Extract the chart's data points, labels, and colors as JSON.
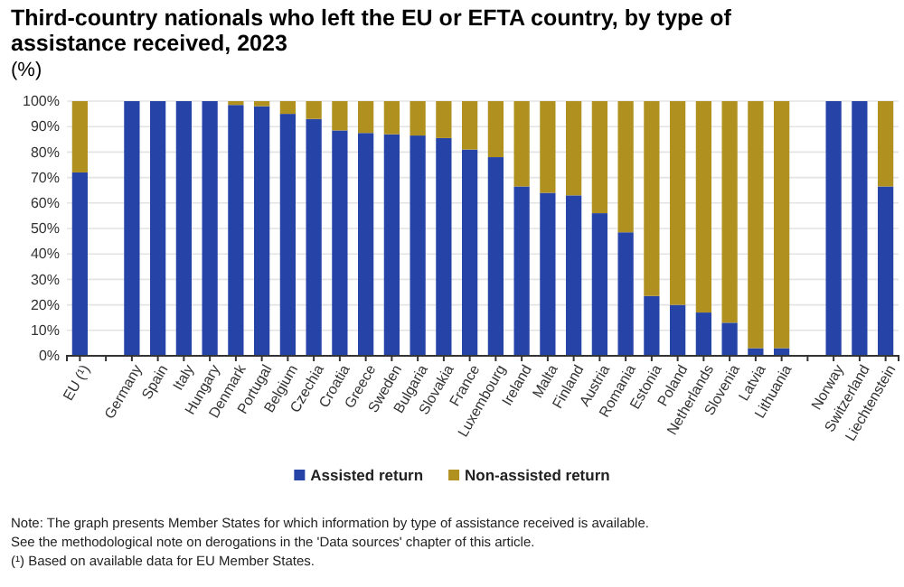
{
  "chart_data": {
    "type": "bar",
    "stacked": true,
    "title": "Third-country nationals who left the EU or EFTA country, by type of assistance received, 2023",
    "subtitle": "(%)",
    "categories": [
      "EU (¹)",
      null,
      "Germany",
      "Spain",
      "Italy",
      "Hungary",
      "Denmark",
      "Portugal",
      "Belgium",
      "Czechia",
      "Croatia",
      "Greece",
      "Sweden",
      "Bulgaria",
      "Slovakia",
      "France",
      "Luxembourg",
      "Ireland",
      "Malta",
      "Finland",
      "Austria",
      "Romania",
      "Estonia",
      "Poland",
      "Netherlands",
      "Slovenia",
      "Latvia",
      "Lithuania",
      null,
      "Norway",
      "Switzerland",
      "Liechtenstein"
    ],
    "series": [
      {
        "name": "Assisted return",
        "color": "#2644a7",
        "values": [
          72,
          null,
          100,
          100,
          100,
          100,
          98.5,
          98,
          95,
          93,
          88.5,
          87.5,
          87,
          86.5,
          85.5,
          81,
          78,
          66.5,
          64,
          63,
          56,
          48.5,
          23.5,
          20,
          17,
          13,
          3,
          3,
          null,
          100,
          100,
          66.5
        ]
      },
      {
        "name": "Non-assisted return",
        "color": "#b09120",
        "values": [
          28,
          null,
          0,
          0,
          0,
          0,
          1.5,
          2,
          5,
          7,
          11.5,
          12.5,
          13,
          13.5,
          14.5,
          19,
          22,
          33.5,
          36,
          37,
          44,
          51.5,
          76.5,
          80,
          83,
          87,
          97,
          97,
          null,
          0,
          0,
          33.5
        ]
      }
    ],
    "ylim": [
      0,
      100
    ],
    "yticks": [
      {
        "value": 0,
        "label": "0%"
      },
      {
        "value": 10,
        "label": "10%"
      },
      {
        "value": 20,
        "label": "20%"
      },
      {
        "value": 30,
        "label": "30%"
      },
      {
        "value": 40,
        "label": "40%"
      },
      {
        "value": 50,
        "label": "50%"
      },
      {
        "value": 60,
        "label": "60%"
      },
      {
        "value": 70,
        "label": "70%"
      },
      {
        "value": 80,
        "label": "80%"
      },
      {
        "value": 90,
        "label": "90%"
      },
      {
        "value": 100,
        "label": "100%"
      }
    ],
    "grid": "y",
    "legend": "bottom",
    "annotations": [
      "Note: The graph presents Member States for which information by type of assistance received is available.",
      "See the methodological note on derogations in the 'Data sources' chapter of this article.",
      "(¹) Based on available data for EU Member States."
    ]
  }
}
